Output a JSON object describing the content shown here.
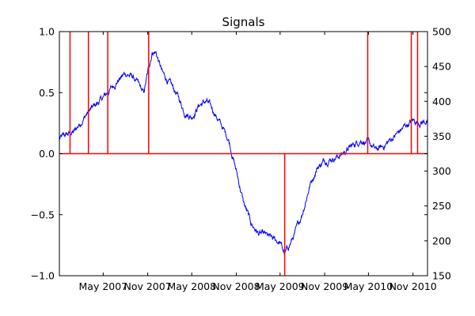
{
  "chart_data": {
    "type": "line",
    "title": "Signals",
    "xlabel": "",
    "ylabel_left": "",
    "ylabel_right": "",
    "left_axis": {
      "ylim": [
        -1.0,
        1.0
      ],
      "ticks": [
        "-1.0",
        "-0.5",
        "0.0",
        "0.5",
        "1.0"
      ]
    },
    "right_axis": {
      "ylim": [
        150,
        500
      ],
      "ticks": [
        "150",
        "200",
        "250",
        "300",
        "350",
        "400",
        "450",
        "500"
      ]
    },
    "x_axis": {
      "range": [
        "2006-11-01",
        "2010-12-31"
      ],
      "ticks": [
        "May 2007",
        "Nov 2007",
        "May 2008",
        "Nov 2008",
        "May 2009",
        "Nov 2009",
        "May 2010",
        "Nov 2010"
      ],
      "tick_dates": [
        "2007-05-01",
        "2007-11-01",
        "2008-05-01",
        "2008-11-01",
        "2009-05-01",
        "2009-11-01",
        "2010-05-01",
        "2010-11-01"
      ]
    },
    "grid": false,
    "series": [
      {
        "axis": "right",
        "color": "#0000ff",
        "points": [
          [
            "2006-11-01",
            346
          ],
          [
            "2006-12-01",
            352
          ],
          [
            "2007-01-01",
            356
          ],
          [
            "2007-02-01",
            372
          ],
          [
            "2007-03-01",
            385
          ],
          [
            "2007-04-01",
            395
          ],
          [
            "2007-05-01",
            405
          ],
          [
            "2007-06-01",
            418
          ],
          [
            "2007-07-01",
            430
          ],
          [
            "2007-08-01",
            440
          ],
          [
            "2007-09-01",
            435
          ],
          [
            "2007-10-01",
            420
          ],
          [
            "2007-10-15",
            410
          ],
          [
            "2007-11-01",
            440
          ],
          [
            "2007-11-20",
            472
          ],
          [
            "2007-12-05",
            470
          ],
          [
            "2008-01-01",
            440
          ],
          [
            "2008-02-01",
            425
          ],
          [
            "2008-03-01",
            410
          ],
          [
            "2008-04-01",
            385
          ],
          [
            "2008-05-01",
            378
          ],
          [
            "2008-06-01",
            395
          ],
          [
            "2008-07-01",
            400
          ],
          [
            "2008-08-01",
            385
          ],
          [
            "2008-09-01",
            365
          ],
          [
            "2008-10-01",
            345
          ],
          [
            "2008-11-01",
            300
          ],
          [
            "2008-12-01",
            255
          ],
          [
            "2009-01-01",
            225
          ],
          [
            "2009-02-01",
            210
          ],
          [
            "2009-03-01",
            208
          ],
          [
            "2009-04-01",
            202
          ],
          [
            "2009-05-01",
            198
          ],
          [
            "2009-05-20",
            180
          ],
          [
            "2009-06-10",
            195
          ],
          [
            "2009-07-01",
            210
          ],
          [
            "2009-08-01",
            240
          ],
          [
            "2009-09-01",
            280
          ],
          [
            "2009-10-01",
            305
          ],
          [
            "2009-11-01",
            315
          ],
          [
            "2009-12-01",
            318
          ],
          [
            "2010-01-01",
            322
          ],
          [
            "2010-02-01",
            330
          ],
          [
            "2010-03-01",
            338
          ],
          [
            "2010-04-01",
            345
          ],
          [
            "2010-05-01",
            340
          ],
          [
            "2010-06-01",
            330
          ],
          [
            "2010-07-01",
            335
          ],
          [
            "2010-08-01",
            345
          ],
          [
            "2010-09-01",
            355
          ],
          [
            "2010-10-01",
            365
          ],
          [
            "2010-11-01",
            372
          ],
          [
            "2010-12-01",
            370
          ],
          [
            "2010-12-31",
            372
          ]
        ]
      },
      {
        "axis": "left",
        "color": "#ff0000",
        "type": "signals",
        "baseline": 0.0,
        "signals": [
          [
            "2006-12-15",
            1.0
          ],
          [
            "2007-03-01",
            1.0
          ],
          [
            "2007-05-20",
            1.0
          ],
          [
            "2007-11-05",
            1.0
          ],
          [
            "2009-05-20",
            -1.0
          ],
          [
            "2010-04-28",
            1.0
          ],
          [
            "2010-10-25",
            1.0
          ],
          [
            "2010-11-20",
            1.0
          ]
        ]
      }
    ]
  }
}
